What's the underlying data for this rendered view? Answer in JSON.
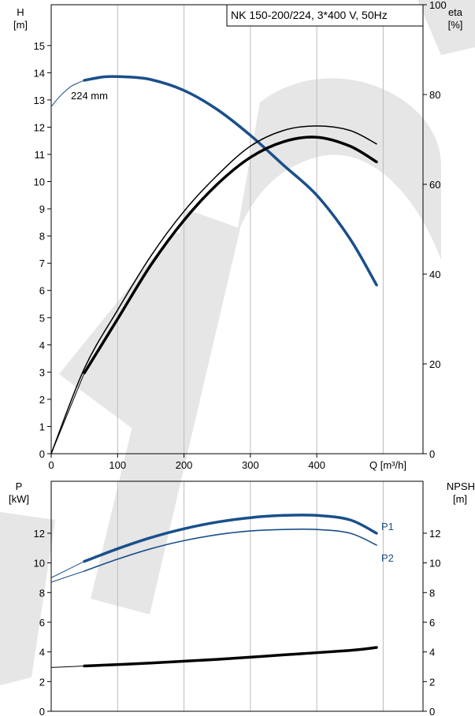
{
  "title": "NK 150-200/224, 3*400 V, 50Hz",
  "top_chart": {
    "left_axis_label": [
      "H",
      "[m]"
    ],
    "right_axis_label": [
      "eta",
      "[%]"
    ],
    "x_axis_label": "Q [m³/h]",
    "impeller_label": "224 mm"
  },
  "bottom_chart": {
    "left_axis_label": [
      "P",
      "[kW]"
    ],
    "right_axis_label": [
      "NPSH",
      "[m]"
    ],
    "series_labels": [
      "P1",
      "P2"
    ]
  },
  "colors": {
    "blue": "#1a4f8a",
    "blue_light": "#2e6aa7",
    "black": "#000000",
    "watermark": "#e6e6e6"
  },
  "chart_data": [
    {
      "type": "line",
      "title": "NK 150-200/224, 3*400 V, 50Hz",
      "xlabel": "Q [m³/h]",
      "ylabel": "H [m]",
      "y2label": "eta [%]",
      "xlim": [
        0,
        560
      ],
      "ylim": [
        0,
        16.5
      ],
      "y2lim": [
        0,
        100
      ],
      "xticks": [
        0,
        100,
        200,
        300,
        400
      ],
      "yticks": [
        0,
        1,
        2,
        3,
        4,
        5,
        6,
        7,
        8,
        9,
        10,
        11,
        12,
        13,
        14,
        15
      ],
      "y2ticks": [
        0,
        20,
        40,
        60,
        80,
        100
      ],
      "series": [
        {
          "name": "224 mm",
          "axis": "left",
          "thin_x": [
            0,
            10,
            20,
            30,
            40,
            50
          ],
          "thin_y": [
            12.75,
            13.05,
            13.3,
            13.5,
            13.62,
            13.72
          ],
          "x": [
            50,
            80,
            110,
            150,
            200,
            250,
            300,
            350,
            400,
            450,
            490
          ],
          "y": [
            13.72,
            13.85,
            13.85,
            13.75,
            13.35,
            12.65,
            11.7,
            10.6,
            9.5,
            7.9,
            6.2
          ]
        },
        {
          "axis": "right",
          "thin_x": [
            0,
            50
          ],
          "thin_y": [
            0,
            18
          ],
          "x": [
            50,
            100,
            150,
            200,
            250,
            300,
            350,
            400,
            450,
            490
          ],
          "y": [
            18,
            30,
            42,
            52,
            60,
            66,
            69.5,
            70.5,
            68.5,
            65
          ]
        },
        {
          "axis": "right",
          "x": [
            0,
            50,
            100,
            150,
            200,
            250,
            300,
            350,
            400,
            450,
            490
          ],
          "y": [
            0,
            19,
            32,
            44,
            54,
            62,
            68.5,
            72,
            73,
            72,
            69
          ]
        }
      ]
    },
    {
      "type": "line",
      "xlabel": "Q [m³/h]",
      "ylabel": "P [kW]",
      "y2label": "NPSH [m]",
      "xlim": [
        0,
        560
      ],
      "ylim": [
        0,
        15.5
      ],
      "y2lim": [
        0,
        15.5
      ],
      "yticks": [
        0,
        2,
        4,
        6,
        8,
        10,
        12
      ],
      "y2ticks": [
        0,
        2,
        4,
        6,
        8,
        10,
        12
      ],
      "series": [
        {
          "name": "P1",
          "axis": "left",
          "thin_x": [
            0,
            50
          ],
          "thin_y": [
            9.0,
            10.1
          ],
          "x": [
            50,
            100,
            150,
            200,
            250,
            300,
            350,
            400,
            450,
            490
          ],
          "y": [
            10.1,
            10.95,
            11.7,
            12.3,
            12.75,
            13.05,
            13.2,
            13.2,
            12.9,
            12.0
          ]
        },
        {
          "name": "P2",
          "axis": "left",
          "thin_x": [
            0,
            50
          ],
          "thin_y": [
            8.7,
            9.45
          ],
          "x": [
            50,
            100,
            150,
            200,
            250,
            300,
            350,
            400,
            450,
            490
          ],
          "y": [
            9.45,
            10.25,
            10.95,
            11.5,
            11.9,
            12.15,
            12.25,
            12.25,
            12.0,
            11.2
          ]
        },
        {
          "name": "NPSH",
          "axis": "right",
          "thin_x": [
            0,
            50
          ],
          "thin_y": [
            2.95,
            3.05
          ],
          "x": [
            50,
            150,
            250,
            350,
            450,
            490
          ],
          "y": [
            3.05,
            3.25,
            3.5,
            3.8,
            4.1,
            4.3
          ]
        }
      ]
    }
  ]
}
